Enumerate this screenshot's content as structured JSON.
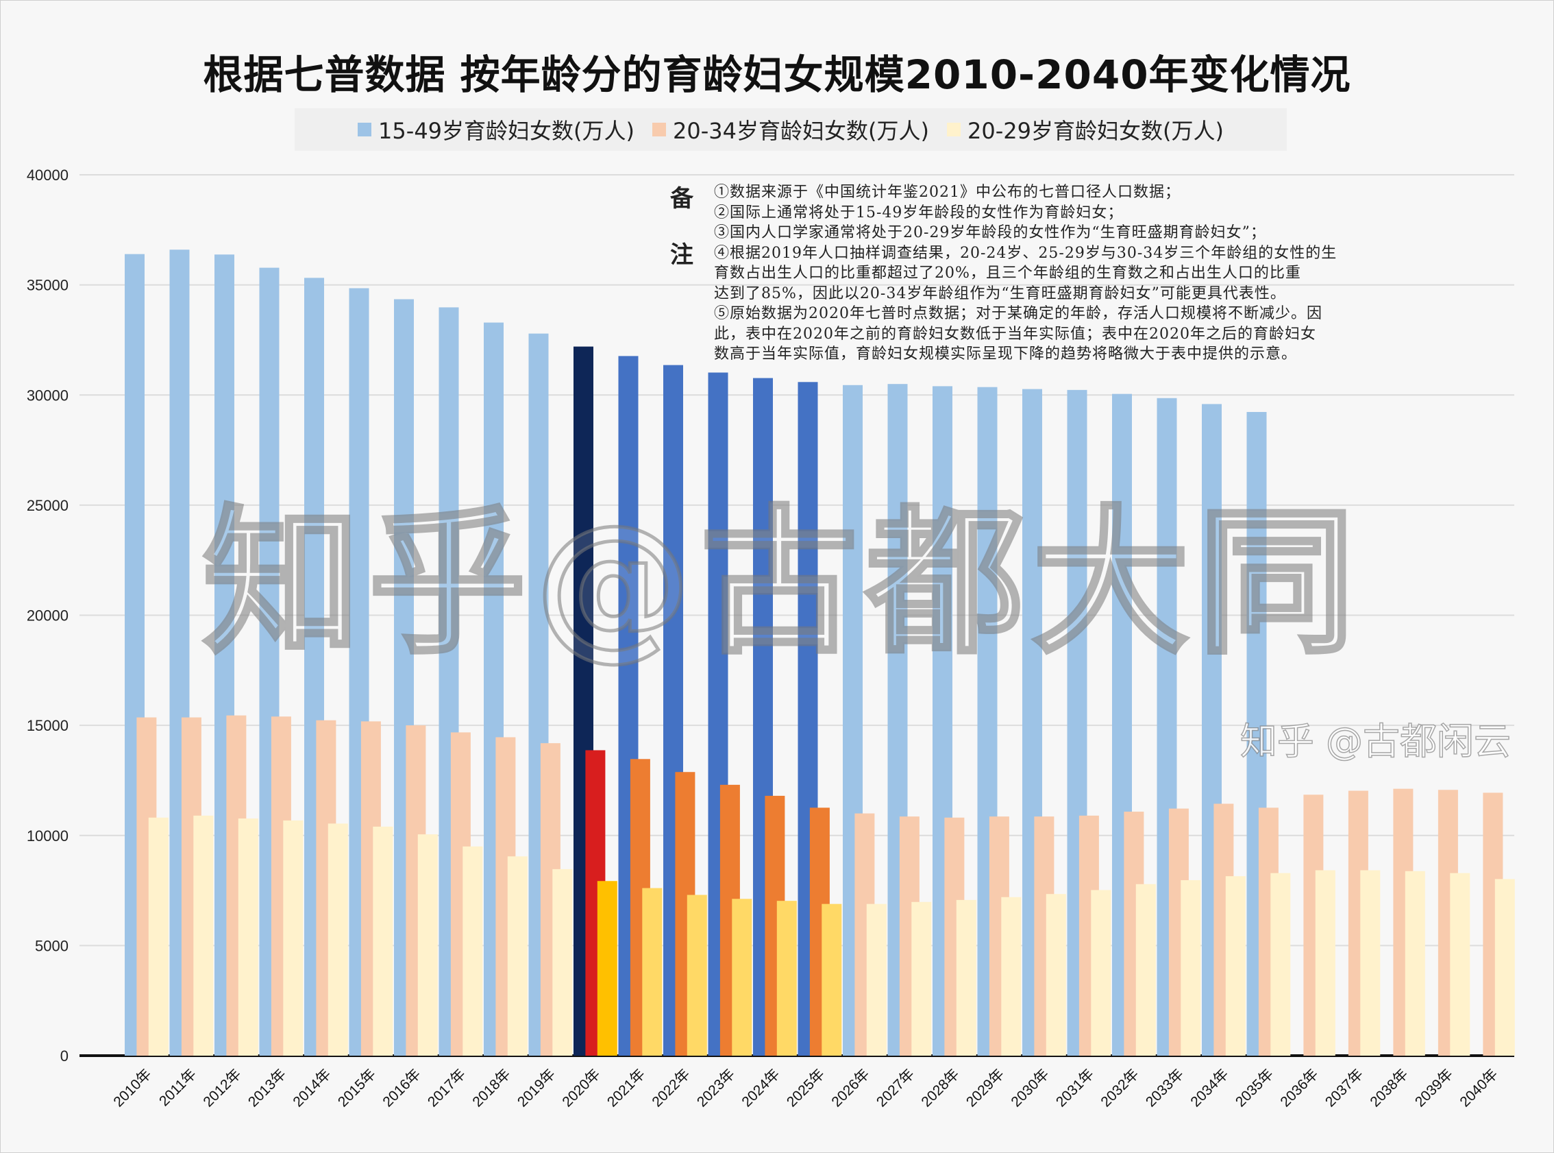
{
  "title": "根据七普数据  按年龄分的育龄妇女规模2010-2040年变化情况",
  "watermark": "知乎@古都大同",
  "watermark_corner": "知乎 @古都闲云",
  "notes": {
    "label_top": "备",
    "label_bottom": "注",
    "lines": [
      "①数据来源于《中国统计年鉴2021》中公布的七普口径人口数据；",
      "②国际上通常将处于15-49岁年龄段的女性作为育龄妇女；",
      "③国内人口学家通常将处于20-29岁年龄段的女性作为“生育旺盛期育龄妇女”；",
      "④根据2019年人口抽样调查结果，20-24岁、25-29岁与30-34岁三个年龄组的女性的生",
      "  育数占出生人口的比重都超过了20%，且三个年龄组的生育数之和占出生人口的比重",
      "  达到了85%，因此以20-34岁年龄组作为“生育旺盛期育龄妇女”可能更具代表性。",
      "⑤原始数据为2020年七普时点数据；对于某确定的年龄，存活人口规模将不断减少。因",
      "  此，表中在2020年之前的育龄妇女数低于当年实际值；表中在2020年之后的育龄妇女",
      "  数高于当年实际值，育龄妇女规模实际呈现下降的趋势将略微大于表中提供的示意。"
    ]
  },
  "chart_data": {
    "type": "bar",
    "title": "根据七普数据  按年龄分的育龄妇女规模2010-2040年变化情况",
    "xlabel": "",
    "ylabel": "",
    "ylim": [
      0,
      40000
    ],
    "yticks": [
      "0",
      "5000",
      "10000",
      "15000",
      "20000",
      "25000",
      "30000",
      "35000",
      "40000"
    ],
    "grid": true,
    "legend_position": "top",
    "categories": [
      "2010年",
      "2011年",
      "2012年",
      "2013年",
      "2014年",
      "2015年",
      "2016年",
      "2017年",
      "2018年",
      "2019年",
      "2020年",
      "2021年",
      "2022年",
      "2023年",
      "2024年",
      "2025年",
      "2026年",
      "2027年",
      "2028年",
      "2029年",
      "2030年",
      "2031年",
      "2032年",
      "2033年",
      "2034年",
      "2035年",
      "2036年",
      "2037年",
      "2038年",
      "2039年",
      "2040年"
    ],
    "series": [
      {
        "name": "15-49岁育龄妇女数(万人)",
        "colors": {
          "base": "#9dc3e6",
          "highlight_2020": "#0e2657",
          "highlight_2021_2025": "#4472c4"
        },
        "values": [
          36400,
          36600,
          36380,
          35780,
          35320,
          34850,
          34350,
          33980,
          33290,
          32790,
          32200,
          31770,
          31360,
          31020,
          30770,
          30590,
          30450,
          30500,
          30400,
          30360,
          30270,
          30230,
          30050,
          29860,
          29590,
          29230,
          null,
          null,
          null,
          null,
          null
        ]
      },
      {
        "name": "20-34岁育龄妇女数(万人)",
        "colors": {
          "base": "#f8cbad",
          "highlight_2020": "#d81e1e",
          "highlight_2021_2025": "#ed7d31"
        },
        "values": [
          15360,
          15360,
          15450,
          15400,
          15230,
          15180,
          15000,
          14680,
          14460,
          14190,
          13870,
          13470,
          12880,
          12300,
          11800,
          11260,
          11000,
          10860,
          10810,
          10860,
          10860,
          10900,
          11080,
          11220,
          11440,
          11260,
          11850,
          12030,
          12120,
          12070,
          11940
        ]
      },
      {
        "name": "20-29岁育龄妇女数(万人)",
        "colors": {
          "base": "#fff2cc",
          "highlight_2020": "#ffc000",
          "highlight_2021_2025": "#ffd966"
        },
        "values": [
          10810,
          10900,
          10770,
          10680,
          10540,
          10400,
          10050,
          9500,
          9050,
          8470,
          7930,
          7610,
          7300,
          7120,
          7030,
          6890,
          6890,
          6980,
          7070,
          7200,
          7340,
          7520,
          7790,
          7970,
          8150,
          8290,
          8420,
          8420,
          8380,
          8290,
          8020
        ]
      }
    ]
  }
}
